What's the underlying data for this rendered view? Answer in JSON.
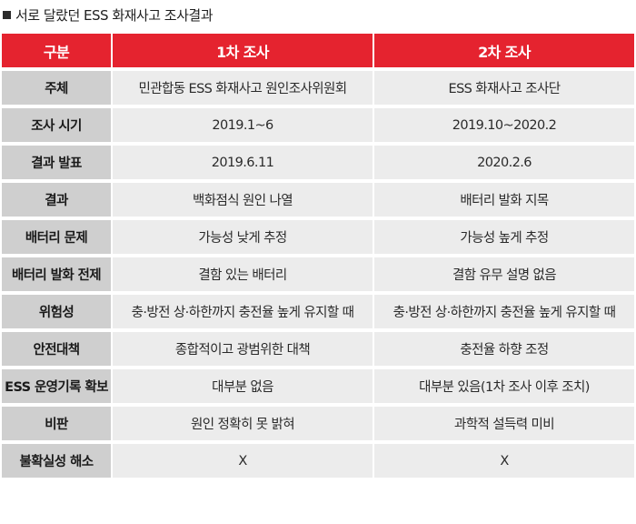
{
  "title": "서로 달랐던 ESS 화재사고 조사결과",
  "header": {
    "col1": "구분",
    "col2": "1차 조사",
    "col3": "2차 조사"
  },
  "rows": [
    {
      "label": "주체",
      "first": "민관합동 ESS 화재사고 원인조사위원회",
      "second": "ESS 화재사고 조사단"
    },
    {
      "label": "조사 시기",
      "first": "2019.1~6",
      "second": "2019.10~2020.2"
    },
    {
      "label": "결과 발표",
      "first": "2019.6.11",
      "second": "2020.2.6"
    },
    {
      "label": "결과",
      "first": "백화점식 원인 나열",
      "second": "배터리 발화 지목"
    },
    {
      "label": "배터리 문제",
      "first": "가능성 낮게 추정",
      "second": "가능성 높게 추정"
    },
    {
      "label": "배터리 발화 전제",
      "first": "결함 있는 배터리",
      "second": "결함 유무 설명 없음"
    },
    {
      "label": "위험성",
      "first": "충·방전 상·하한까지 충전율 높게 유지할 때",
      "second": "충·방전 상·하한까지 충전율 높게 유지할 때"
    },
    {
      "label": "안전대책",
      "first": "종합적이고 광범위한 대책",
      "second": "충전율 하향 조정"
    },
    {
      "label": "ESS 운영기록 확보",
      "first": "대부분 없음",
      "second": "대부분 있음(1차 조사 이후 조치)"
    },
    {
      "label": "비판",
      "first": "원인 정확히 못 밝혀",
      "second": "과학적 설득력 미비"
    },
    {
      "label": "불확실성 해소",
      "first": "X",
      "second": "X"
    }
  ],
  "colors": {
    "header_red": "#e5232f",
    "label_gray": "#cfcfcf",
    "cell_gray": "#ececec"
  }
}
